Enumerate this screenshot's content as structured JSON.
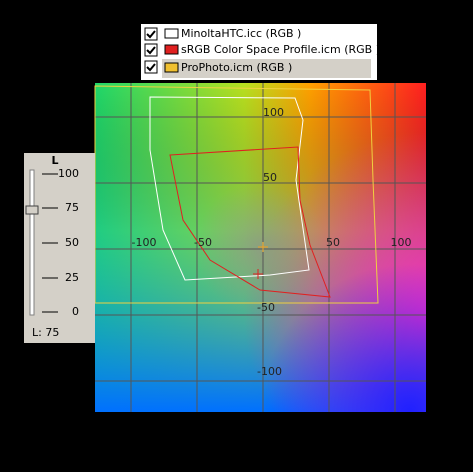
{
  "legend": {
    "items": [
      {
        "label": "MinoltaHTC.icc (RGB )"
      },
      {
        "label": "sRGB Color Space Profile.icm (RGB )"
      },
      {
        "label": "ProPhoto.icm (RGB )"
      }
    ]
  },
  "plot": {
    "a_ticks": [
      "-100",
      "-50",
      "50",
      "100"
    ],
    "b_ticks": [
      "100",
      "50",
      "-50",
      "-100"
    ]
  },
  "slider": {
    "title": "L",
    "ticks": [
      "100",
      "75",
      "50",
      "25",
      "0"
    ],
    "readout": "L: 75"
  }
}
